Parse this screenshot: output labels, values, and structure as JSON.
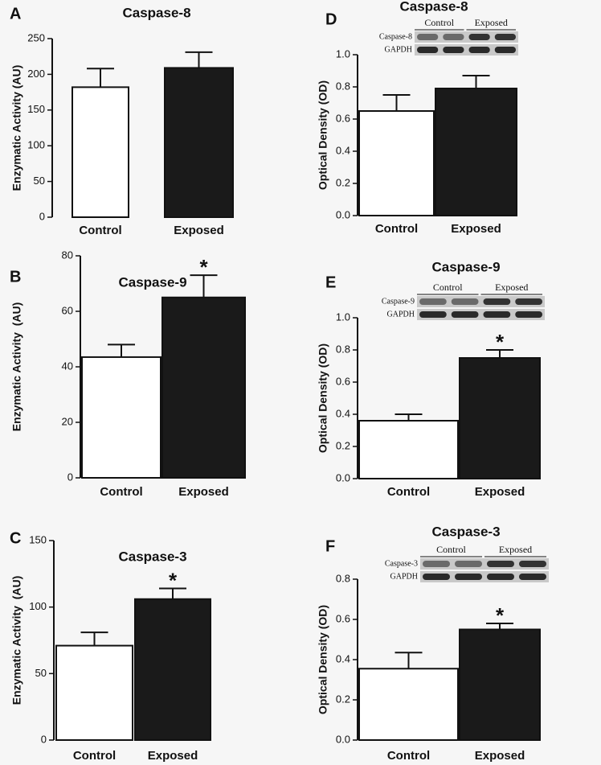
{
  "chart_data": [
    {
      "type": "bar",
      "label": "A",
      "title": "Caspase-8",
      "y_label": "Enzymatic Activity (AU)",
      "categories": [
        "Control",
        "Exposed"
      ],
      "values": [
        182,
        209
      ],
      "errors": [
        26,
        22
      ],
      "colors": [
        "#ffffff",
        "#1a1a1a"
      ],
      "ylim": [
        0,
        250
      ],
      "yticks": [
        0,
        50,
        100,
        150,
        200,
        250
      ]
    },
    {
      "type": "bar",
      "label": "B",
      "title": "Caspase-9",
      "y_label": "Enzymatic Activity  (AU)",
      "categories": [
        "Control",
        "Exposed"
      ],
      "values": [
        43.5,
        65
      ],
      "errors": [
        4.5,
        8
      ],
      "colors": [
        "#ffffff",
        "#1a1a1a"
      ],
      "ylim": [
        0,
        80
      ],
      "yticks": [
        0,
        20,
        40,
        60,
        80
      ],
      "annotations": [
        {
          "text": "*",
          "x": "Exposed"
        }
      ]
    },
    {
      "type": "bar",
      "label": "C",
      "title": "Caspase-3",
      "y_label": "Enzymatic Activity  (AU)",
      "categories": [
        "Control",
        "Exposed"
      ],
      "values": [
        71,
        106
      ],
      "errors": [
        10,
        8
      ],
      "colors": [
        "#ffffff",
        "#1a1a1a"
      ],
      "ylim": [
        0,
        150
      ],
      "yticks": [
        0,
        50,
        100,
        150
      ],
      "annotations": [
        {
          "text": "*",
          "x": "Exposed"
        }
      ]
    },
    {
      "type": "bar",
      "label": "D",
      "title": "Caspase-8",
      "y_label": "Optical Density (OD)",
      "categories": [
        "Control",
        "Exposed"
      ],
      "values": [
        0.65,
        0.79
      ],
      "errors": [
        0.1,
        0.08
      ],
      "colors": [
        "#ffffff",
        "#1a1a1a"
      ],
      "ylim": [
        0,
        1
      ],
      "yticks": [
        {
          "value": 0,
          "label": "0.0"
        },
        0.2,
        0.4,
        0.6,
        0.8,
        {
          "value": 1,
          "label": "1.0"
        }
      ],
      "blot": {
        "rows": [
          "Caspase-8",
          "GAPDH"
        ],
        "groups": [
          "Control",
          "Exposed"
        ]
      }
    },
    {
      "type": "bar",
      "label": "E",
      "title": "Caspase-9",
      "y_label": "Optical Density (OD)",
      "categories": [
        "Control",
        "Exposed"
      ],
      "values": [
        0.36,
        0.75
      ],
      "errors": [
        0.04,
        0.05
      ],
      "colors": [
        "#ffffff",
        "#1a1a1a"
      ],
      "ylim": [
        0,
        1
      ],
      "yticks": [
        {
          "value": 0,
          "label": "0.0"
        },
        0.2,
        0.4,
        0.6,
        0.8,
        {
          "value": 1,
          "label": "1.0"
        }
      ],
      "blot": {
        "rows": [
          "Caspase-9",
          "GAPDH"
        ],
        "groups": [
          "Control",
          "Exposed"
        ]
      },
      "annotations": [
        {
          "text": "*",
          "x": "Exposed"
        }
      ]
    },
    {
      "type": "bar",
      "label": "F",
      "title": "Caspase-3",
      "y_label": "Optical Density (OD)",
      "categories": [
        "Control",
        "Exposed"
      ],
      "values": [
        0.355,
        0.55
      ],
      "errors": [
        0.08,
        0.03
      ],
      "colors": [
        "#ffffff",
        "#1a1a1a"
      ],
      "ylim": [
        0,
        0.8
      ],
      "yticks": [
        {
          "value": 0,
          "label": "0.0"
        },
        0.2,
        0.4,
        0.6,
        {
          "value": 0.8,
          "label": "0.8"
        }
      ],
      "blot": {
        "rows": [
          "Caspase-3",
          "GAPDH"
        ],
        "groups": [
          "Control",
          "Exposed"
        ]
      },
      "annotations": [
        {
          "text": "*",
          "x": "Exposed"
        }
      ]
    }
  ]
}
